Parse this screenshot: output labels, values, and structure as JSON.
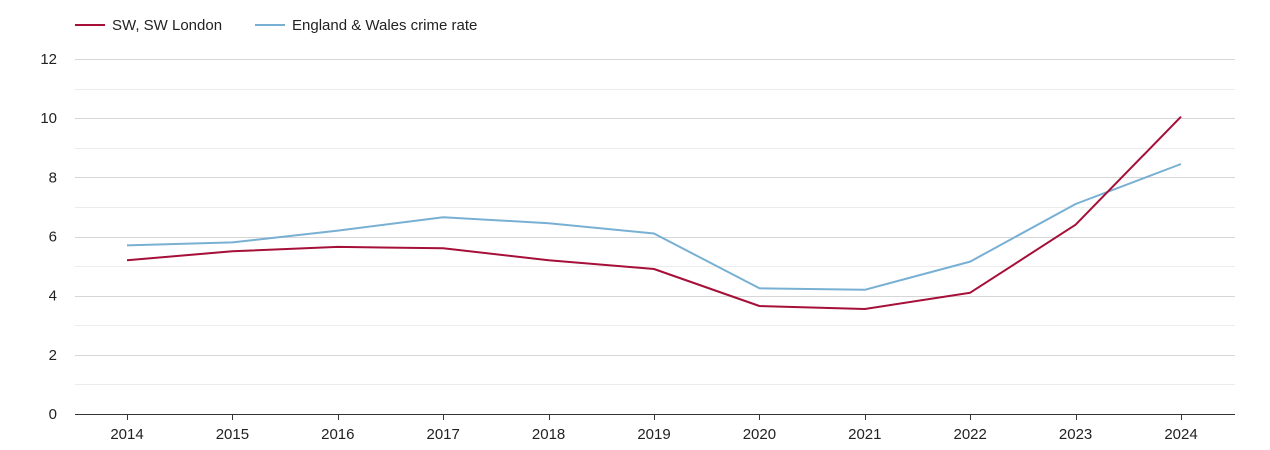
{
  "chart_data": {
    "type": "line",
    "title": "",
    "xlabel": "",
    "ylabel": "",
    "categories": [
      "2014",
      "2015",
      "2016",
      "2017",
      "2018",
      "2019",
      "2020",
      "2021",
      "2022",
      "2023",
      "2024"
    ],
    "ylim": [
      0,
      12
    ],
    "yticks": [
      0,
      2,
      4,
      6,
      8,
      10,
      12
    ],
    "grid": true,
    "legend_position": "top-left",
    "series": [
      {
        "name": "SW, SW London",
        "color": "#a50f38",
        "values": [
          5.2,
          5.5,
          5.65,
          5.6,
          5.2,
          4.9,
          3.65,
          3.55,
          4.1,
          6.4,
          10.05
        ]
      },
      {
        "name": "England & Wales crime rate",
        "color": "#78b0d4",
        "values": [
          5.7,
          5.8,
          6.2,
          6.65,
          6.45,
          6.1,
          4.25,
          4.2,
          5.15,
          7.1,
          8.45
        ]
      }
    ]
  }
}
